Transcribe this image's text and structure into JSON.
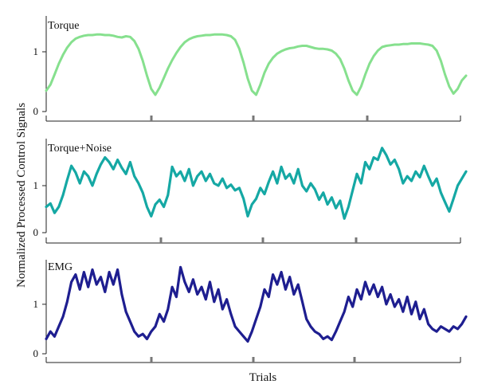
{
  "ylabel": "Normalized Processed Control Signals",
  "xlabel": "Trials",
  "chart_data": [
    {
      "type": "line",
      "title": "Torque",
      "color": "#86e08e",
      "ylim": [
        0,
        1.6
      ],
      "yticks": [
        0,
        1
      ],
      "xlim": [
        0,
        100
      ],
      "x_major_ticks": [
        24,
        48,
        75
      ],
      "x": [
        0,
        1,
        2,
        3,
        4,
        5,
        6,
        7,
        8,
        9,
        10,
        11,
        12,
        13,
        14,
        15,
        16,
        17,
        18,
        19,
        20,
        21,
        22,
        23,
        24,
        25,
        26,
        27,
        28,
        29,
        30,
        31,
        32,
        33,
        34,
        35,
        36,
        37,
        38,
        39,
        40,
        41,
        42,
        43,
        44,
        45,
        46,
        47,
        48,
        49,
        50,
        51,
        52,
        53,
        54,
        55,
        56,
        57,
        58,
        59,
        60,
        61,
        62,
        63,
        64,
        65,
        66,
        67,
        68,
        69,
        70,
        71,
        72,
        73,
        74,
        75,
        76,
        77,
        78,
        79,
        80,
        81,
        82,
        83,
        84,
        85,
        86,
        87,
        88,
        89,
        90,
        91,
        92,
        93,
        94,
        95,
        96,
        97,
        98,
        99,
        100
      ],
      "values": [
        0.35,
        0.45,
        0.62,
        0.8,
        0.95,
        1.07,
        1.16,
        1.22,
        1.25,
        1.27,
        1.28,
        1.28,
        1.29,
        1.29,
        1.28,
        1.28,
        1.27,
        1.25,
        1.24,
        1.26,
        1.25,
        1.18,
        1.05,
        0.85,
        0.6,
        0.38,
        0.28,
        0.4,
        0.56,
        0.72,
        0.86,
        0.98,
        1.08,
        1.16,
        1.21,
        1.24,
        1.26,
        1.27,
        1.28,
        1.28,
        1.29,
        1.29,
        1.29,
        1.28,
        1.26,
        1.2,
        1.05,
        0.82,
        0.55,
        0.35,
        0.28,
        0.45,
        0.65,
        0.8,
        0.9,
        0.97,
        1.01,
        1.04,
        1.06,
        1.07,
        1.09,
        1.1,
        1.1,
        1.08,
        1.06,
        1.05,
        1.05,
        1.04,
        1.02,
        0.97,
        0.88,
        0.72,
        0.52,
        0.35,
        0.28,
        0.42,
        0.62,
        0.8,
        0.93,
        1.02,
        1.08,
        1.1,
        1.11,
        1.12,
        1.12,
        1.13,
        1.13,
        1.14,
        1.14,
        1.14,
        1.13,
        1.12,
        1.1,
        1.02,
        0.85,
        0.62,
        0.42,
        0.3,
        0.38,
        0.52,
        0.6
      ]
    },
    {
      "type": "line",
      "title": "Torque+Noise",
      "color": "#15a8a4",
      "ylim": [
        0,
        2.0
      ],
      "yticks": [
        0,
        1
      ],
      "xlim": [
        0,
        100
      ],
      "x_major_ticks": [
        24,
        48,
        75
      ],
      "x": [
        0,
        1,
        2,
        3,
        4,
        5,
        6,
        7,
        8,
        9,
        10,
        11,
        12,
        13,
        14,
        15,
        16,
        17,
        18,
        19,
        20,
        21,
        22,
        23,
        24,
        25,
        26,
        27,
        28,
        29,
        30,
        31,
        32,
        33,
        34,
        35,
        36,
        37,
        38,
        39,
        40,
        41,
        42,
        43,
        44,
        45,
        46,
        47,
        48,
        49,
        50,
        51,
        52,
        53,
        54,
        55,
        56,
        57,
        58,
        59,
        60,
        61,
        62,
        63,
        64,
        65,
        66,
        67,
        68,
        69,
        70,
        71,
        72,
        73,
        74,
        75,
        76,
        77,
        78,
        79,
        80,
        81,
        82,
        83,
        84,
        85,
        86,
        87,
        88,
        89,
        90,
        91,
        92,
        93,
        94,
        95,
        96,
        97,
        98,
        99,
        100
      ],
      "values": [
        0.55,
        0.62,
        0.42,
        0.55,
        0.8,
        1.12,
        1.42,
        1.28,
        1.05,
        1.3,
        1.2,
        1.0,
        1.25,
        1.45,
        1.6,
        1.5,
        1.35,
        1.55,
        1.38,
        1.25,
        1.5,
        1.2,
        1.05,
        0.85,
        0.55,
        0.35,
        0.6,
        0.7,
        0.55,
        0.8,
        1.4,
        1.2,
        1.3,
        1.1,
        1.35,
        1.0,
        1.2,
        1.3,
        1.1,
        1.25,
        1.05,
        1.0,
        1.15,
        0.95,
        1.02,
        0.9,
        0.95,
        0.72,
        0.35,
        0.6,
        0.72,
        0.95,
        0.82,
        1.08,
        1.3,
        1.05,
        1.4,
        1.15,
        1.25,
        1.05,
        1.35,
        1.0,
        0.88,
        1.05,
        0.92,
        0.7,
        0.85,
        0.6,
        0.75,
        0.52,
        0.68,
        0.3,
        0.55,
        0.9,
        1.25,
        1.05,
        1.5,
        1.35,
        1.6,
        1.55,
        1.8,
        1.65,
        1.45,
        1.55,
        1.35,
        1.05,
        1.2,
        1.1,
        1.3,
        1.18,
        1.42,
        1.2,
        1.0,
        1.15,
        0.85,
        0.65,
        0.45,
        0.72,
        1.0,
        1.15,
        1.3
      ]
    },
    {
      "type": "line",
      "title": "EMG",
      "color": "#1e1e90",
      "ylim": [
        0,
        1.9
      ],
      "yticks": [
        0,
        1
      ],
      "xlim": [
        0,
        100
      ],
      "x_major_ticks": [
        24,
        48,
        75
      ],
      "x": [
        0,
        1,
        2,
        3,
        4,
        5,
        6,
        7,
        8,
        9,
        10,
        11,
        12,
        13,
        14,
        15,
        16,
        17,
        18,
        19,
        20,
        21,
        22,
        23,
        24,
        25,
        26,
        27,
        28,
        29,
        30,
        31,
        32,
        33,
        34,
        35,
        36,
        37,
        38,
        39,
        40,
        41,
        42,
        43,
        44,
        45,
        46,
        47,
        48,
        49,
        50,
        51,
        52,
        53,
        54,
        55,
        56,
        57,
        58,
        59,
        60,
        61,
        62,
        63,
        64,
        65,
        66,
        67,
        68,
        69,
        70,
        71,
        72,
        73,
        74,
        75,
        76,
        77,
        78,
        79,
        80,
        81,
        82,
        83,
        84,
        85,
        86,
        87,
        88,
        89,
        90,
        91,
        92,
        93,
        94,
        95,
        96,
        97,
        98,
        99,
        100
      ],
      "values": [
        0.3,
        0.45,
        0.35,
        0.55,
        0.75,
        1.05,
        1.45,
        1.6,
        1.3,
        1.65,
        1.35,
        1.7,
        1.4,
        1.55,
        1.25,
        1.65,
        1.4,
        1.7,
        1.2,
        0.85,
        0.65,
        0.45,
        0.35,
        0.4,
        0.3,
        0.45,
        0.55,
        0.8,
        0.65,
        0.9,
        1.35,
        1.15,
        1.75,
        1.45,
        1.25,
        1.5,
        1.2,
        1.35,
        1.1,
        1.45,
        1.05,
        1.3,
        0.9,
        1.1,
        0.8,
        0.55,
        0.45,
        0.35,
        0.25,
        0.45,
        0.7,
        0.95,
        1.3,
        1.15,
        1.6,
        1.4,
        1.65,
        1.3,
        1.55,
        1.2,
        1.4,
        1.05,
        0.7,
        0.55,
        0.45,
        0.4,
        0.3,
        0.35,
        0.28,
        0.45,
        0.65,
        0.85,
        1.15,
        0.95,
        1.3,
        1.1,
        1.45,
        1.2,
        1.4,
        1.15,
        1.35,
        1.0,
        1.2,
        0.95,
        1.1,
        0.85,
        1.15,
        0.8,
        1.05,
        0.7,
        0.9,
        0.6,
        0.5,
        0.45,
        0.55,
        0.5,
        0.45,
        0.55,
        0.5,
        0.6,
        0.75
      ]
    }
  ]
}
